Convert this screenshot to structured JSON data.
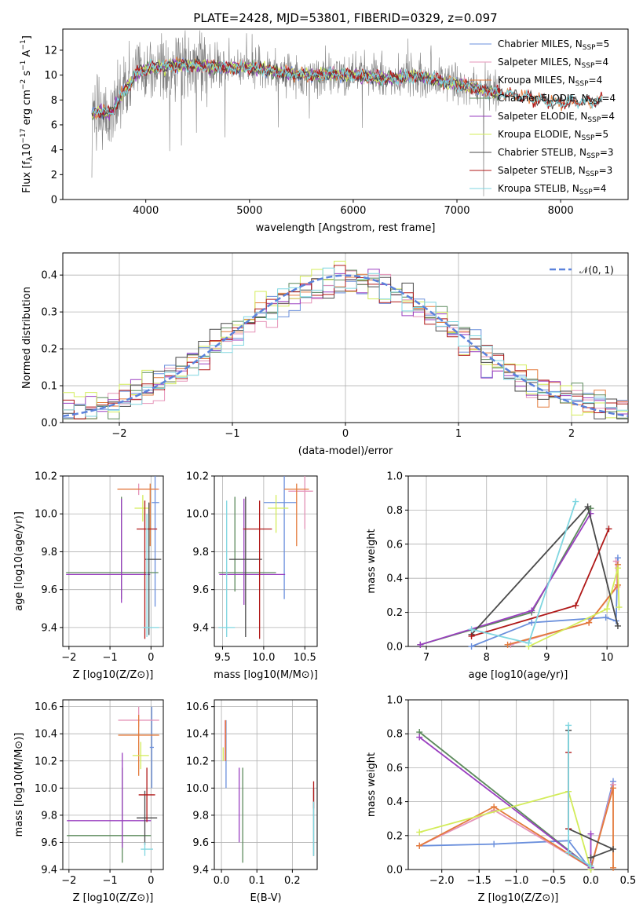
{
  "figure": {
    "title": "PLATE=2428, MJD=53801, FIBERID=0329, z=0.097"
  },
  "colors": {
    "Chabrier MILES": "#6a8fdc",
    "Salpeter MILES": "#e593b8",
    "Kroupa MILES": "#e37a3b",
    "Chabrier ELODIE": "#5c8a5c",
    "Salpeter ELODIE": "#9a3fc0",
    "Kroupa ELODIE": "#d3ec5a",
    "Chabrier STELIB": "#4a4a4a",
    "Salpeter STELIB": "#b01818",
    "Kroupa STELIB": "#7fd6e0",
    "data": "#808080",
    "normal": "#5b82dc"
  },
  "chart_data": [
    {
      "type": "line",
      "panel": "spectrum",
      "xlabel": "wavelength [Angstrom, rest frame]",
      "ylabel": "Flux [f_λ10^-17 erg cm^-2 s^-1 A^-1]",
      "xlim": [
        3200,
        8650
      ],
      "ylim": [
        0,
        13.7
      ],
      "xticks": [
        "4000",
        "5000",
        "6000",
        "7000",
        "8000"
      ],
      "yticks": [
        "0",
        "2",
        "4",
        "6",
        "8",
        "10",
        "12"
      ],
      "legend_position": "right",
      "legend": [
        {
          "label": "Chabrier MILES, N",
          "sub": "SSP",
          "tail": "=5"
        },
        {
          "label": "Salpeter MILES, N",
          "sub": "SSP",
          "tail": "=4"
        },
        {
          "label": "Kroupa MILES, N",
          "sub": "SSP",
          "tail": "=4"
        },
        {
          "label": "Chabrier ELODIE, N",
          "sub": "SSP",
          "tail": "=4"
        },
        {
          "label": "Salpeter ELODIE, N",
          "sub": "SSP",
          "tail": "=4"
        },
        {
          "label": "Kroupa ELODIE, N",
          "sub": "SSP",
          "tail": "=5"
        },
        {
          "label": "Chabrier STELIB, N",
          "sub": "SSP",
          "tail": "=3"
        },
        {
          "label": "Salpeter STELIB, N",
          "sub": "SSP",
          "tail": "=3"
        },
        {
          "label": "Kroupa STELIB, N",
          "sub": "SSP",
          "tail": "=4"
        }
      ],
      "model_curve": {
        "x": [
          3480,
          3550,
          3650,
          3700,
          3800,
          3850,
          3900,
          4000,
          4200,
          4400,
          4600,
          4800,
          5000,
          5200,
          5400,
          5600,
          5800,
          6000,
          6200,
          6400,
          6600,
          6800,
          7000,
          7200,
          7400,
          7600,
          7800,
          8000,
          8200,
          8400
        ],
        "y": [
          6.9,
          7.1,
          6.9,
          7.4,
          8.8,
          9.3,
          10.1,
          10.5,
          10.7,
          10.8,
          10.7,
          10.6,
          10.6,
          10.4,
          10.1,
          10.0,
          10.1,
          10.0,
          9.8,
          9.7,
          10.0,
          9.6,
          9.3,
          8.9,
          8.6,
          8.3,
          8.0,
          7.8,
          7.8,
          8.0
        ]
      }
    },
    {
      "type": "bar",
      "panel": "residual histogram",
      "xlabel": "(data-model)/error",
      "ylabel": "Normed distribution",
      "xlim": [
        -2.5,
        2.5
      ],
      "ylim": [
        0,
        0.46
      ],
      "xticks": [
        "−2",
        "−1",
        "0",
        "1",
        "2"
      ],
      "yticks": [
        "0.0",
        "0.1",
        "0.2",
        "0.3",
        "0.4"
      ],
      "legend": [
        "𝒩(0, 1)"
      ],
      "grid": true,
      "legend_position": "upper right",
      "bins": {
        "start": -2.5,
        "width": 0.1,
        "count": 50
      },
      "normal_curve": {
        "mean": 0,
        "sigma": 1
      }
    },
    {
      "type": "scatter",
      "panel": "age vs Z",
      "xlabel": "Z [log10(Z/Z⊙)]",
      "ylabel": "age [log10(age/yr)]",
      "xlim": [
        -2.15,
        0.3
      ],
      "ylim": [
        9.3,
        10.2
      ],
      "xticks": [
        "−2",
        "−1",
        "0"
      ],
      "yticks": [
        "9.4",
        "9.6",
        "9.8",
        "10.0",
        "10.2"
      ],
      "grid": true,
      "points": [
        {
          "s": "Chabrier MILES",
          "x": 0.1,
          "y": 10.06,
          "xerr": [
            0.08,
            0.1
          ],
          "yerr": [
            0.55,
            0.14
          ]
        },
        {
          "s": "Salpeter MILES",
          "x": -0.3,
          "y": 10.13,
          "xerr": [
            0.5,
            0.5
          ],
          "yerr": [
            0.03,
            0.03
          ]
        },
        {
          "s": "Kroupa MILES",
          "x": -0.02,
          "y": 10.13,
          "xerr": [
            0.8,
            0.2
          ],
          "yerr": [
            0.3,
            0.03
          ]
        },
        {
          "s": "Chabrier ELODIE",
          "x": -0.72,
          "y": 9.69,
          "xerr": [
            1.35,
            0.9
          ],
          "yerr": [
            0.14,
            0.4
          ]
        },
        {
          "s": "Salpeter ELODIE",
          "x": -0.72,
          "y": 9.68,
          "xerr": [
            1.35,
            0.7
          ],
          "yerr": [
            0.15,
            0.4
          ]
        },
        {
          "s": "Kroupa ELODIE",
          "x": -0.2,
          "y": 10.03,
          "xerr": [
            0.2,
            0.15
          ],
          "yerr": [
            0.07,
            0.07
          ]
        },
        {
          "s": "Chabrier STELIB",
          "x": -0.05,
          "y": 9.76,
          "xerr": [
            0.1,
            0.3
          ],
          "yerr": [
            0.4,
            0.3
          ]
        },
        {
          "s": "Salpeter STELIB",
          "x": -0.15,
          "y": 9.92,
          "xerr": [
            0.2,
            0.3
          ],
          "yerr": [
            0.58,
            0.15
          ]
        },
        {
          "s": "Kroupa STELIB",
          "x": -0.1,
          "y": 9.4,
          "xerr": [
            0.1,
            0.3
          ],
          "yerr": [
            0.05,
            0.6
          ]
        }
      ]
    },
    {
      "type": "scatter",
      "panel": "age vs mass",
      "xlabel": "mass [log10(M/M⊙)]",
      "ylabel": "",
      "xlim": [
        9.4,
        10.65
      ],
      "ylim": [
        9.3,
        10.2
      ],
      "xticks": [
        "9.5",
        "10.0",
        "10.5"
      ],
      "yticks": [
        "9.4",
        "9.6",
        "9.8",
        "10.0",
        "10.2"
      ],
      "grid": true,
      "points": [
        {
          "s": "Chabrier MILES",
          "x": 10.25,
          "y": 10.06,
          "xerr": [
            0.25,
            0.15
          ],
          "yerr": [
            0.51,
            0.14
          ]
        },
        {
          "s": "Salpeter MILES",
          "x": 10.5,
          "y": 10.12,
          "xerr": [
            0.2,
            0.1
          ],
          "yerr": [
            0.2,
            0.08
          ]
        },
        {
          "s": "Kroupa MILES",
          "x": 10.4,
          "y": 10.13,
          "xerr": [
            0.15,
            0.15
          ],
          "yerr": [
            0.3,
            0.03
          ]
        },
        {
          "s": "Chabrier ELODIE",
          "x": 9.65,
          "y": 9.69,
          "xerr": [
            0.2,
            0.5
          ],
          "yerr": [
            0.1,
            0.4
          ]
        },
        {
          "s": "Salpeter ELODIE",
          "x": 9.76,
          "y": 9.68,
          "xerr": [
            0.3,
            0.5
          ],
          "yerr": [
            0.16,
            0.4
          ]
        },
        {
          "s": "Kroupa ELODIE",
          "x": 10.15,
          "y": 10.03,
          "xerr": [
            0.1,
            0.15
          ],
          "yerr": [
            0.13,
            0.07
          ]
        },
        {
          "s": "Chabrier STELIB",
          "x": 9.78,
          "y": 9.76,
          "xerr": [
            0.2,
            0.2
          ],
          "yerr": [
            0.41,
            0.33
          ]
        },
        {
          "s": "Salpeter STELIB",
          "x": 9.95,
          "y": 9.92,
          "xerr": [
            0.2,
            0.15
          ],
          "yerr": [
            0.58,
            0.15
          ]
        },
        {
          "s": "Kroupa STELIB",
          "x": 9.55,
          "y": 9.4,
          "xerr": [
            0.1,
            0.1
          ],
          "yerr": [
            0.05,
            0.67
          ]
        }
      ]
    },
    {
      "type": "line",
      "panel": "mass weight vs age",
      "xlabel": "age [log10(age/yr)]",
      "ylabel": "mass weight",
      "xlim": [
        6.7,
        10.35
      ],
      "ylim": [
        0,
        1.0
      ],
      "xticks": [
        "7",
        "8",
        "9",
        "10"
      ],
      "yticks": [
        "0.0",
        "0.2",
        "0.4",
        "0.6",
        "0.8",
        "1.0"
      ],
      "grid": true,
      "series": [
        {
          "s": "Chabrier MILES",
          "x": [
            7.75,
            8.75,
            9.98,
            10.15,
            10.18
          ],
          "y": [
            0.0,
            0.14,
            0.17,
            0.15,
            0.52
          ]
        },
        {
          "s": "Salpeter MILES",
          "x": [
            8.4,
            9.7,
            10.17,
            10.15
          ],
          "y": [
            0.01,
            0.14,
            0.35,
            0.5
          ]
        },
        {
          "s": "Kroupa MILES",
          "x": [
            8.35,
            9.7,
            10.18,
            10.18
          ],
          "y": [
            0.01,
            0.14,
            0.36,
            0.48
          ]
        },
        {
          "s": "Chabrier ELODIE",
          "x": [
            6.9,
            8.75,
            9.73
          ],
          "y": [
            0.01,
            0.2,
            0.81
          ]
        },
        {
          "s": "Salpeter ELODIE",
          "x": [
            6.9,
            8.75,
            9.73
          ],
          "y": [
            0.01,
            0.21,
            0.78
          ]
        },
        {
          "s": "Kroupa ELODIE",
          "x": [
            8.7,
            10.0,
            10.18,
            10.2
          ],
          "y": [
            0.0,
            0.22,
            0.46,
            0.23
          ]
        },
        {
          "s": "Chabrier STELIB",
          "x": [
            7.75,
            9.68,
            10.18
          ],
          "y": [
            0.07,
            0.82,
            0.12
          ]
        },
        {
          "s": "Salpeter STELIB",
          "x": [
            7.75,
            9.48,
            10.03
          ],
          "y": [
            0.06,
            0.24,
            0.69
          ]
        },
        {
          "s": "Kroupa STELIB",
          "x": [
            7.75,
            8.7,
            9.48
          ],
          "y": [
            0.1,
            0.02,
            0.85
          ]
        }
      ]
    },
    {
      "type": "scatter",
      "panel": "mass vs Z",
      "xlabel": "Z [log10(Z/Z⊙)]",
      "ylabel": "mass [log10(M/M⊙)]",
      "xlim": [
        -2.15,
        0.3
      ],
      "ylim": [
        9.4,
        10.65
      ],
      "xticks": [
        "−2",
        "−1",
        "0"
      ],
      "yticks": [
        "9.4",
        "9.6",
        "9.8",
        "10.0",
        "10.2",
        "10.4",
        "10.6"
      ],
      "grid": true,
      "points": [
        {
          "s": "Chabrier MILES",
          "x": 0.02,
          "y": 10.3,
          "xerr": [
            0.05,
            0.05
          ],
          "yerr": [
            0.3,
            0.3
          ]
        },
        {
          "s": "Salpeter MILES",
          "x": -0.3,
          "y": 10.5,
          "xerr": [
            0.5,
            0.5
          ],
          "yerr": [
            0.05,
            0.1
          ]
        },
        {
          "s": "Kroupa MILES",
          "x": -0.3,
          "y": 10.39,
          "xerr": [
            0.5,
            0.5
          ],
          "yerr": [
            0.3,
            0.15
          ]
        },
        {
          "s": "Chabrier ELODIE",
          "x": -0.7,
          "y": 9.65,
          "xerr": [
            1.35,
            0.7
          ],
          "yerr": [
            0.2,
            0.5
          ]
        },
        {
          "s": "Salpeter ELODIE",
          "x": -0.7,
          "y": 9.76,
          "xerr": [
            1.35,
            0.7
          ],
          "yerr": [
            0.2,
            0.5
          ]
        },
        {
          "s": "Kroupa ELODIE",
          "x": -0.25,
          "y": 10.24,
          "xerr": [
            0.2,
            0.2
          ],
          "yerr": [
            0.1,
            0.1
          ]
        },
        {
          "s": "Chabrier STELIB",
          "x": -0.15,
          "y": 9.78,
          "xerr": [
            0.2,
            0.3
          ],
          "yerr": [
            0.2,
            0.2
          ]
        },
        {
          "s": "Salpeter STELIB",
          "x": -0.1,
          "y": 9.95,
          "xerr": [
            0.2,
            0.2
          ],
          "yerr": [
            0.2,
            0.2
          ]
        },
        {
          "s": "Kroupa STELIB",
          "x": -0.15,
          "y": 9.55,
          "xerr": [
            0.1,
            0.2
          ],
          "yerr": [
            0.05,
            0.05
          ]
        }
      ]
    },
    {
      "type": "scatter",
      "panel": "mass vs E(B-V)",
      "xlabel": "E(B-V)",
      "ylabel": "",
      "xlim": [
        -0.02,
        0.27
      ],
      "ylim": [
        9.4,
        10.65
      ],
      "xticks": [
        "0.0",
        "0.1",
        "0.2"
      ],
      "yticks": [
        "9.4",
        "9.6",
        "9.8",
        "10.0",
        "10.2",
        "10.4",
        "10.6"
      ],
      "grid": true,
      "points": [
        {
          "s": "Chabrier MILES",
          "x": 0.013,
          "y": 10.3,
          "xerr": [
            0,
            0
          ],
          "yerr": [
            0.3,
            0.2
          ]
        },
        {
          "s": "Salpeter MILES",
          "x": 0.01,
          "y": 10.3,
          "xerr": [
            0,
            0
          ],
          "yerr": [
            0.1,
            0.2
          ]
        },
        {
          "s": "Kroupa MILES",
          "x": 0.012,
          "y": 10.35,
          "xerr": [
            0,
            0
          ],
          "yerr": [
            0.15,
            0.15
          ]
        },
        {
          "s": "Chabrier ELODIE",
          "x": 0.06,
          "y": 9.8,
          "xerr": [
            0,
            0
          ],
          "yerr": [
            0.35,
            0.35
          ]
        },
        {
          "s": "Salpeter ELODIE",
          "x": 0.05,
          "y": 9.85,
          "xerr": [
            0,
            0
          ],
          "yerr": [
            0.25,
            0.3
          ]
        },
        {
          "s": "Kroupa ELODIE",
          "x": 0.005,
          "y": 10.25,
          "xerr": [
            0,
            0
          ],
          "yerr": [
            0.05,
            0.05
          ]
        },
        {
          "s": "Chabrier STELIB",
          "x": 0.26,
          "y": 9.75,
          "xerr": [
            0,
            0
          ],
          "yerr": [
            0.25,
            0.25
          ]
        },
        {
          "s": "Salpeter STELIB",
          "x": 0.26,
          "y": 9.95,
          "xerr": [
            0,
            0
          ],
          "yerr": [
            0.1,
            0.1
          ]
        },
        {
          "s": "Kroupa STELIB",
          "x": 0.26,
          "y": 9.7,
          "xerr": [
            0,
            0
          ],
          "yerr": [
            0.2,
            0.2
          ]
        }
      ]
    },
    {
      "type": "line",
      "panel": "mass weight vs Z",
      "xlabel": "Z [log10(Z/Z⊙)]",
      "ylabel": "mass weight",
      "xlim": [
        -2.45,
        0.5
      ],
      "ylim": [
        0,
        1.0
      ],
      "xticks": [
        "−2.0",
        "−1.5",
        "−1.0",
        "−0.5",
        "0.0",
        "0.5"
      ],
      "yticks": [
        "0.0",
        "0.2",
        "0.4",
        "0.6",
        "0.8",
        "1.0"
      ],
      "grid": true,
      "series": [
        {
          "s": "Chabrier MILES",
          "x": [
            -2.3,
            -1.3,
            -0.3,
            0.0,
            0.3
          ],
          "y": [
            0.14,
            0.15,
            0.17,
            0.0,
            0.52
          ]
        },
        {
          "s": "Salpeter MILES",
          "x": [
            -2.3,
            -1.3,
            0.0,
            0.3
          ],
          "y": [
            0.14,
            0.35,
            0.01,
            0.5
          ]
        },
        {
          "s": "Kroupa MILES",
          "x": [
            -2.3,
            -1.3,
            0.0,
            0.3,
            0.3
          ],
          "y": [
            0.14,
            0.37,
            0.01,
            0.48,
            0.01
          ]
        },
        {
          "s": "Chabrier ELODIE",
          "x": [
            -2.3,
            0.0
          ],
          "y": [
            0.81,
            0.01
          ]
        },
        {
          "s": "Salpeter ELODIE",
          "x": [
            -2.3,
            0.0,
            0.0
          ],
          "y": [
            0.78,
            0.01,
            0.21
          ]
        },
        {
          "s": "Kroupa ELODIE",
          "x": [
            -2.3,
            -0.3,
            0.0
          ],
          "y": [
            0.22,
            0.46,
            0.0
          ]
        },
        {
          "s": "Chabrier STELIB",
          "x": [
            -0.3,
            -0.3,
            0.3,
            0.0
          ],
          "y": [
            0.82,
            0.24,
            0.12,
            0.07
          ]
        },
        {
          "s": "Salpeter STELIB",
          "x": [
            -0.3,
            -0.3
          ],
          "y": [
            0.69,
            0.24
          ]
        },
        {
          "s": "Kroupa STELIB",
          "x": [
            -0.3,
            -0.3,
            0.0
          ],
          "y": [
            0.85,
            0.1,
            0.02
          ]
        }
      ]
    }
  ]
}
